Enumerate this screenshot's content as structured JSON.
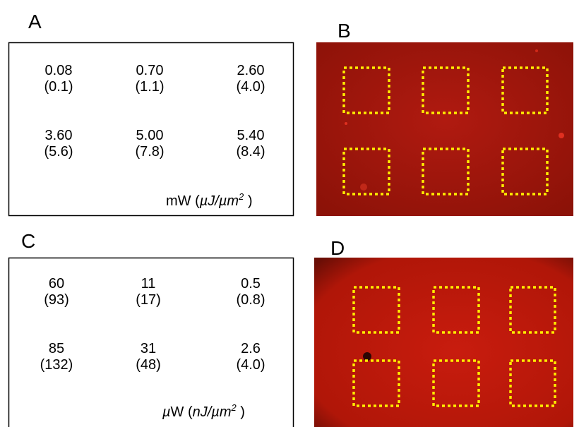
{
  "panels": [
    {
      "label": "A",
      "cells": [
        {
          "value": "0.08",
          "energy": "(0.1)"
        },
        {
          "value": "0.70",
          "energy": "(1.1)"
        },
        {
          "value": "2.60",
          "energy": "(4.0)"
        },
        {
          "value": "3.60",
          "energy": "(5.6)"
        },
        {
          "value": "5.00",
          "energy": "(7.8)"
        },
        {
          "value": "5.40",
          "energy": "(8.4)"
        }
      ],
      "unit": [
        {
          "text": "mW (",
          "italic": false
        },
        {
          "text": "µJ/µm",
          "italic": true
        },
        {
          "text": "2",
          "italic": true,
          "sup": true
        },
        {
          "text": " )",
          "italic": false
        }
      ]
    },
    {
      "label": "B"
    },
    {
      "label": "C",
      "cells": [
        {
          "value": "60",
          "energy": "(93)"
        },
        {
          "value": "11",
          "energy": "(17)"
        },
        {
          "value": "0.5",
          "energy": "(0.8)"
        },
        {
          "value": "85",
          "energy": "(132)"
        },
        {
          "value": "31",
          "energy": "(48)"
        },
        {
          "value": "2.6",
          "energy": "(4.0)"
        }
      ],
      "unit": [
        {
          "text": "µ",
          "italic": true
        },
        {
          "text": "W (",
          "italic": false
        },
        {
          "text": "nJ/µm",
          "italic": true
        },
        {
          "text": "2",
          "italic": true,
          "sup": true
        },
        {
          "text": " )",
          "italic": false
        }
      ]
    },
    {
      "label": "D"
    }
  ]
}
